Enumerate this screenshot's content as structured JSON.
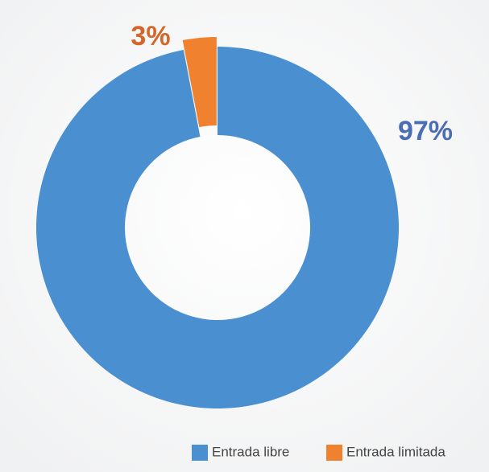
{
  "chart_data": {
    "type": "pie",
    "categories": [
      "Entrada libre",
      "Entrada limitada"
    ],
    "values": [
      97,
      3
    ],
    "value_labels": [
      "97%",
      "3%"
    ],
    "colors": [
      "#4a8fd0",
      "#f0812f"
    ],
    "label_colors": [
      "#4a6db3",
      "#d4662a"
    ],
    "donut": true,
    "legend": "bottom-right"
  }
}
